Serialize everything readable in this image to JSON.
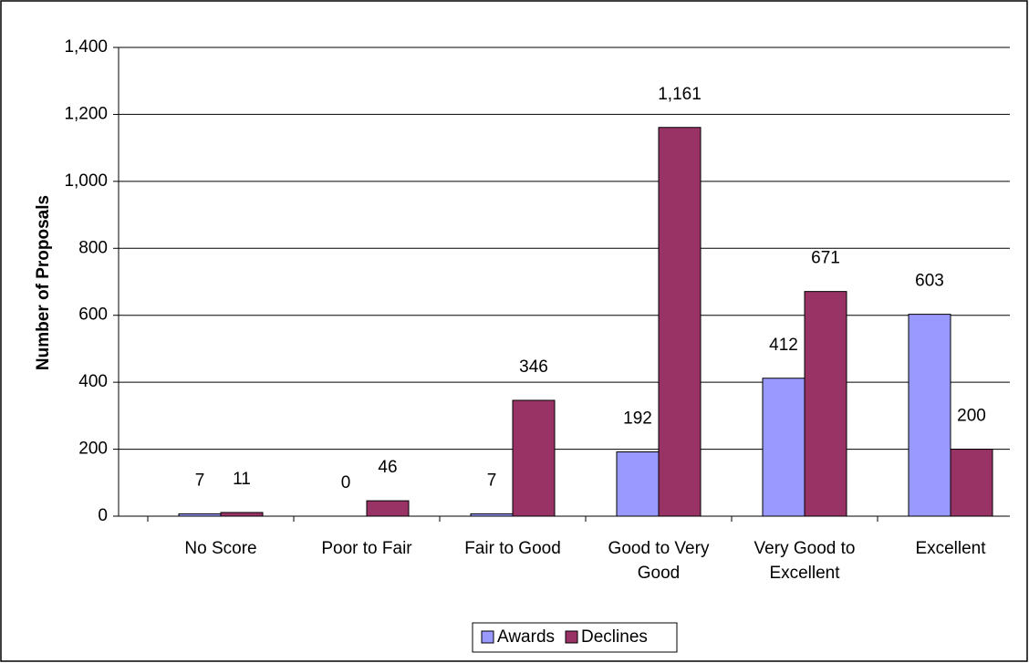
{
  "chart_data": {
    "type": "bar",
    "y_label": "Number of Proposals",
    "categories": [
      "No Score",
      "Poor to Fair",
      "Fair to Good",
      "Good to Very Good",
      "Very Good to Excellent",
      "Excellent"
    ],
    "series": [
      {
        "name": "Awards",
        "color": "#9999ff",
        "values": [
          7,
          0,
          7,
          192,
          412,
          603
        ]
      },
      {
        "name": "Declines",
        "color": "#993366",
        "values": [
          11,
          46,
          346,
          1161,
          671,
          200
        ],
        "value_labels": [
          "11",
          "46",
          "346",
          "1,161",
          "671",
          "200"
        ]
      }
    ],
    "ylim": [
      0,
      1400
    ],
    "yticks": [
      0,
      200,
      400,
      600,
      800,
      {
        "value": 1000,
        "label": "1,000"
      },
      {
        "value": 1200,
        "label": "1,200"
      },
      {
        "value": 1400,
        "label": "1,400"
      }
    ],
    "grid": true,
    "legend": "bottom"
  }
}
